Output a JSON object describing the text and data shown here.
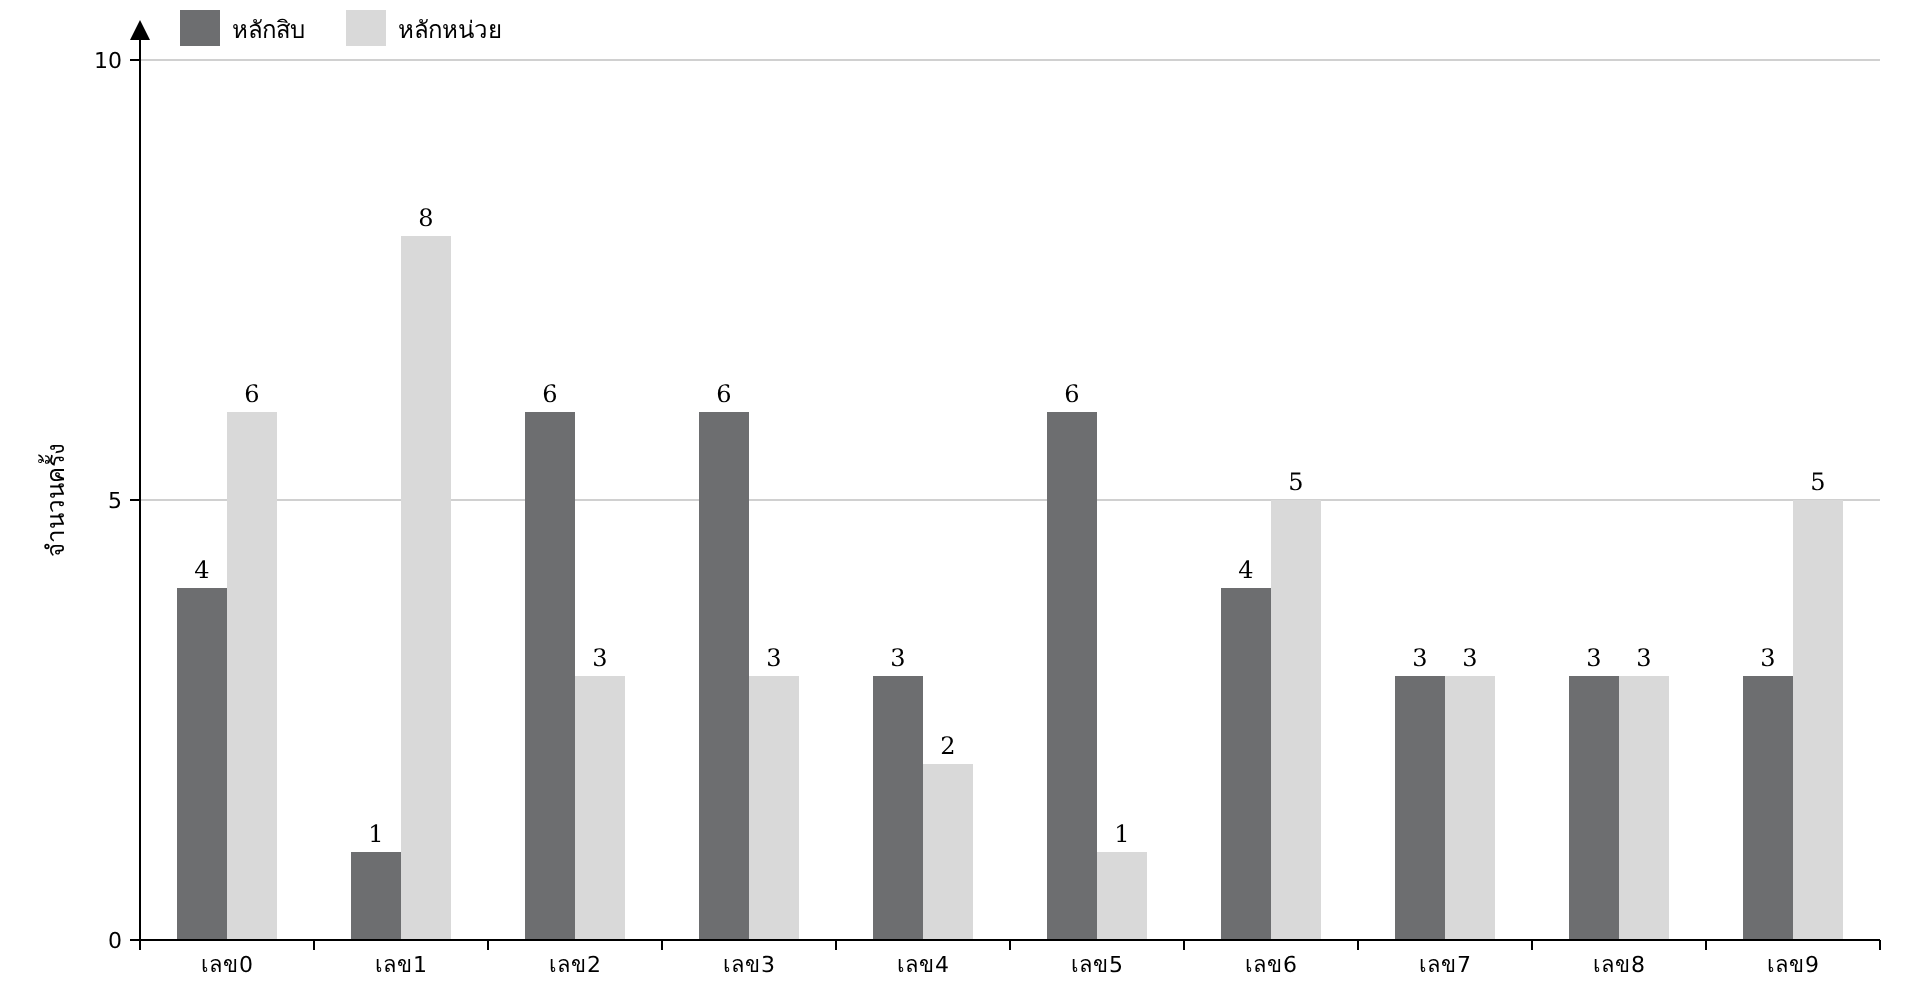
{
  "chart_data": {
    "type": "bar",
    "ylabel": "จำนวนครั้ง",
    "categories": [
      "เลข0",
      "เลข1",
      "เลข2",
      "เลข3",
      "เลข4",
      "เลข5",
      "เลข6",
      "เลข7",
      "เลข8",
      "เลข9"
    ],
    "series": [
      {
        "name": "หลักสิบ",
        "color": "#6d6e70",
        "values": [
          4,
          1,
          6,
          6,
          3,
          6,
          4,
          3,
          3,
          3
        ]
      },
      {
        "name": "หลักหน่วย",
        "color": "#d9d9d9",
        "values": [
          6,
          8,
          3,
          3,
          2,
          1,
          5,
          3,
          3,
          5
        ]
      }
    ],
    "ylim": [
      0,
      10
    ],
    "yticks": [
      0,
      5,
      10
    ],
    "grid": "y",
    "legend": "top left",
    "data_labels": true
  }
}
